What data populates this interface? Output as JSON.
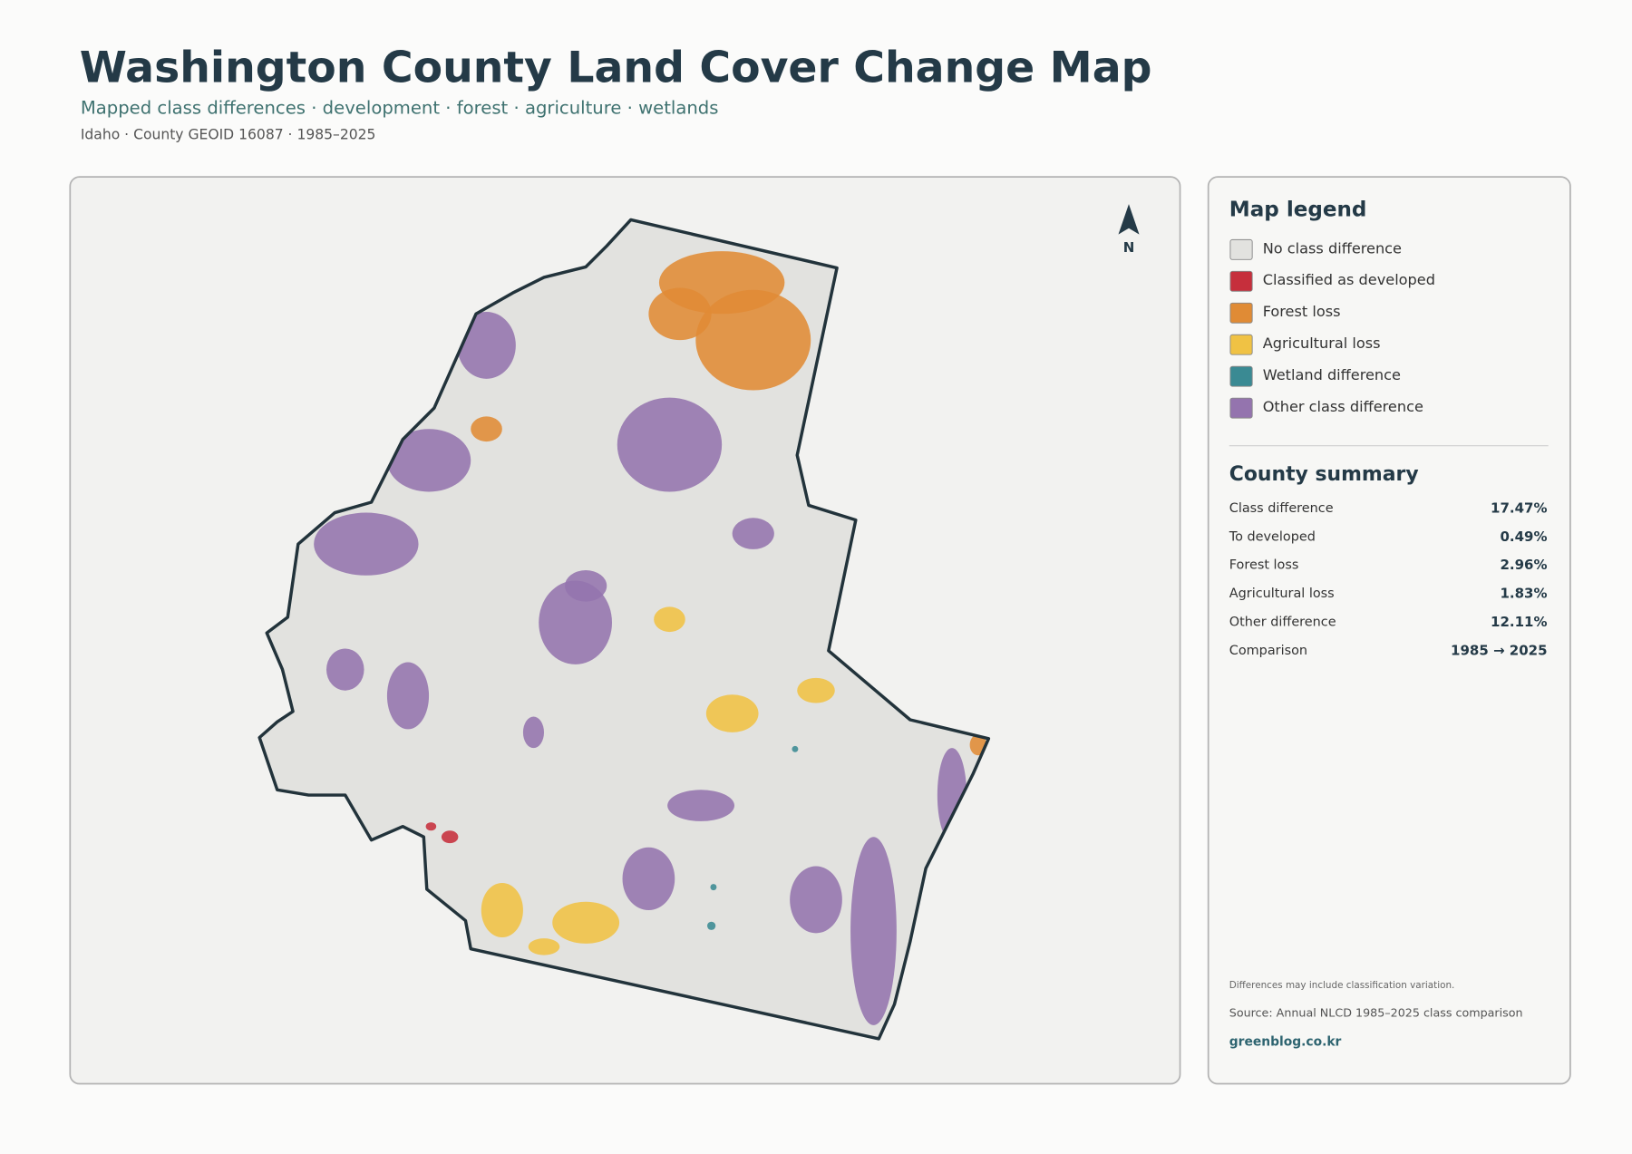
{
  "header": {
    "title": "Washington County Land Cover Change Map",
    "subtitle": "Mapped class differences · development · forest · agriculture · wetlands",
    "meta": "Idaho · County GEOID 16087 · 1985–2025"
  },
  "map": {
    "north_label": "N"
  },
  "legend": {
    "title": "Map legend",
    "items": [
      {
        "label": "No class difference",
        "color": "#e2e2df"
      },
      {
        "label": "Classified as developed",
        "color": "#c62f3c"
      },
      {
        "label": "Forest loss",
        "color": "#e08b35"
      },
      {
        "label": "Agricultural loss",
        "color": "#f0c244"
      },
      {
        "label": "Wetland difference",
        "color": "#3a8a93"
      },
      {
        "label": "Other class difference",
        "color": "#9474ae"
      }
    ]
  },
  "summary": {
    "title": "County summary",
    "rows": [
      {
        "label": "Class difference",
        "value": "17.47%"
      },
      {
        "label": "To developed",
        "value": "0.49%"
      },
      {
        "label": "Forest loss",
        "value": "2.96%"
      },
      {
        "label": "Agricultural loss",
        "value": "1.83%"
      },
      {
        "label": "Other difference",
        "value": "12.11%"
      },
      {
        "label": "Comparison",
        "value": "1985 → 2025"
      }
    ]
  },
  "footer": {
    "note": "Differences may include classification variation.",
    "source": "Source: Annual NLCD 1985–2025 class comparison",
    "website": "greenblog.co.kr"
  }
}
